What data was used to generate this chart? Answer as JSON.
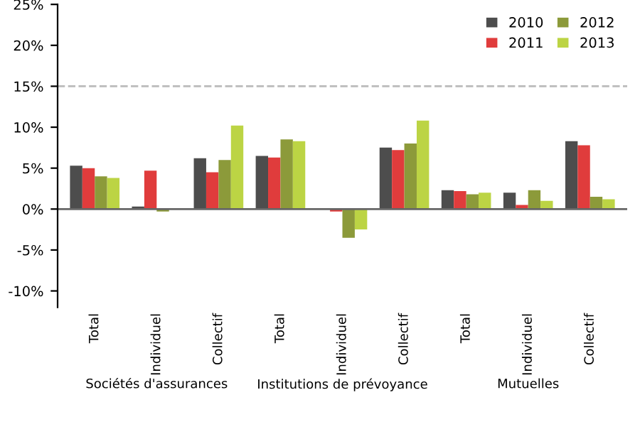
{
  "chart_data": {
    "type": "bar",
    "categories": [
      "Total",
      "Individuel",
      "Collectif",
      "Total",
      "Individuel",
      "Collectif",
      "Total",
      "Individuel",
      "Collectif"
    ],
    "series": [
      {
        "name": "2010",
        "color": "#4d4d4d",
        "values": [
          5.3,
          0.3,
          6.2,
          6.5,
          null,
          7.5,
          2.3,
          2.0,
          8.3
        ]
      },
      {
        "name": "2011",
        "color": "#e03c3c",
        "values": [
          5.0,
          4.7,
          4.5,
          6.3,
          -0.3,
          7.2,
          2.2,
          0.5,
          7.8
        ]
      },
      {
        "name": "2012",
        "color": "#8c9a3a",
        "values": [
          4.0,
          -0.3,
          6.0,
          8.5,
          -3.5,
          8.0,
          1.8,
          2.3,
          1.5
        ]
      },
      {
        "name": "2013",
        "color": "#bcd444",
        "values": [
          3.8,
          null,
          10.2,
          8.3,
          -2.5,
          10.8,
          2.0,
          1.0,
          1.2
        ]
      }
    ],
    "ylim": [
      -12,
      25
    ],
    "yticks": [
      {
        "value": -10,
        "label": "-10%"
      },
      {
        "value": -5,
        "label": "-5%"
      },
      {
        "value": 0,
        "label": "0%"
      },
      {
        "value": 5,
        "label": "5%"
      },
      {
        "value": 10,
        "label": "10%"
      },
      {
        "value": 15,
        "label": "15%"
      },
      {
        "value": 20,
        "label": "20%"
      },
      {
        "value": 25,
        "label": "25%"
      }
    ],
    "ref_lines": [
      {
        "axis": "y",
        "value": 15,
        "label": null,
        "color": "#bbbbbb",
        "line_style": "dashed"
      }
    ],
    "annotations": [
      "Sociétés d'assurances",
      "Institutions de prévoyance",
      "Mutuelles"
    ],
    "legend": "top right",
    "grid": false
  }
}
